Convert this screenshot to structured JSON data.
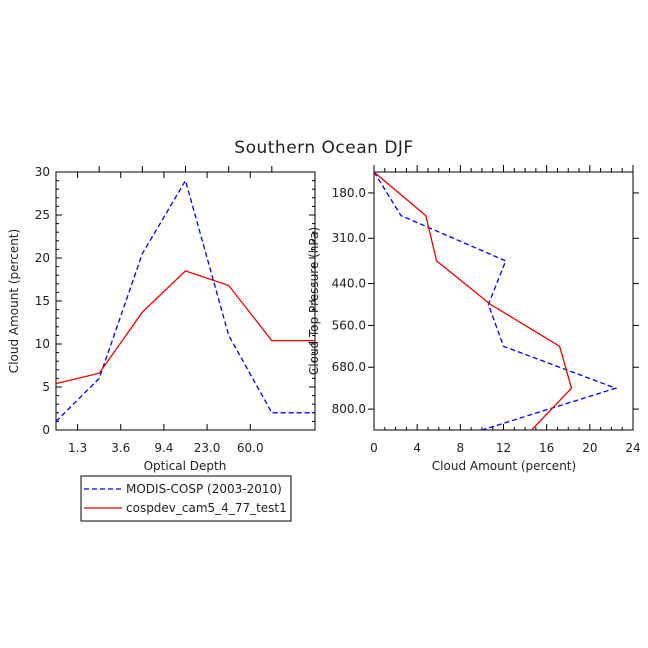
{
  "title": "Southern Ocean DJF",
  "colors": {
    "modis": "#0000ee",
    "cam": "#ee0000",
    "axis": "#000000"
  },
  "legend": {
    "entries": [
      {
        "label": "MODIS-COSP (2003-2010)",
        "color": "#0000ee",
        "style": "dashed"
      },
      {
        "label": "cospdev_cam5_4_77_test1",
        "color": "#ee0000",
        "style": "solid"
      }
    ]
  },
  "chart_data": [
    {
      "type": "line",
      "title": "",
      "xlabel": "Optical Depth",
      "ylabel": "Cloud Amount (percent)",
      "x_tick_labels": [
        "1.3",
        "3.6",
        "9.4",
        "23.0",
        "60.0"
      ],
      "y_ticks": [
        0,
        5,
        10,
        15,
        20,
        25,
        30
      ],
      "ylim": [
        0,
        30
      ],
      "x_index_range": [
        0,
        6
      ],
      "x_tick_positions": [
        0.5,
        1.5,
        2.5,
        3.5,
        4.5
      ],
      "series": [
        {
          "name": "MODIS-COSP (2003-2010)",
          "x": [
            0,
            1,
            2,
            3,
            4,
            5,
            6
          ],
          "values": [
            1.0,
            6.0,
            20.5,
            29.0,
            11.0,
            2.0,
            2.0
          ]
        },
        {
          "name": "cospdev_cam5_4_77_test1",
          "x": [
            0,
            1,
            2,
            3,
            4,
            5,
            6
          ],
          "values": [
            5.4,
            6.6,
            13.7,
            18.5,
            16.8,
            10.4,
            10.4
          ]
        }
      ]
    },
    {
      "type": "line",
      "title": "",
      "xlabel": "Cloud Amount (percent)",
      "ylabel": "Cloud Top Pressure (hPa)",
      "x_ticks": [
        0,
        4,
        8,
        12,
        16,
        20,
        24
      ],
      "xlim": [
        0,
        24
      ],
      "y_tick_labels": [
        "180.0",
        "310.0",
        "440.0",
        "560.0",
        "680.0",
        "800.0"
      ],
      "y_tick_values": [
        180,
        310,
        440,
        560,
        680,
        800
      ],
      "ylim": [
        120,
        860
      ],
      "series": [
        {
          "name": "MODIS-COSP (2003-2010)",
          "pressure": [
            120,
            245,
            375,
            500,
            620,
            740,
            860
          ],
          "values": [
            0.0,
            2.5,
            12.2,
            10.6,
            12.0,
            22.4,
            10.0
          ]
        },
        {
          "name": "cospdev_cam5_4_77_test1",
          "pressure": [
            120,
            245,
            375,
            500,
            620,
            740,
            860
          ],
          "values": [
            0.0,
            4.8,
            5.8,
            10.8,
            17.2,
            18.3,
            14.6
          ]
        }
      ]
    }
  ]
}
